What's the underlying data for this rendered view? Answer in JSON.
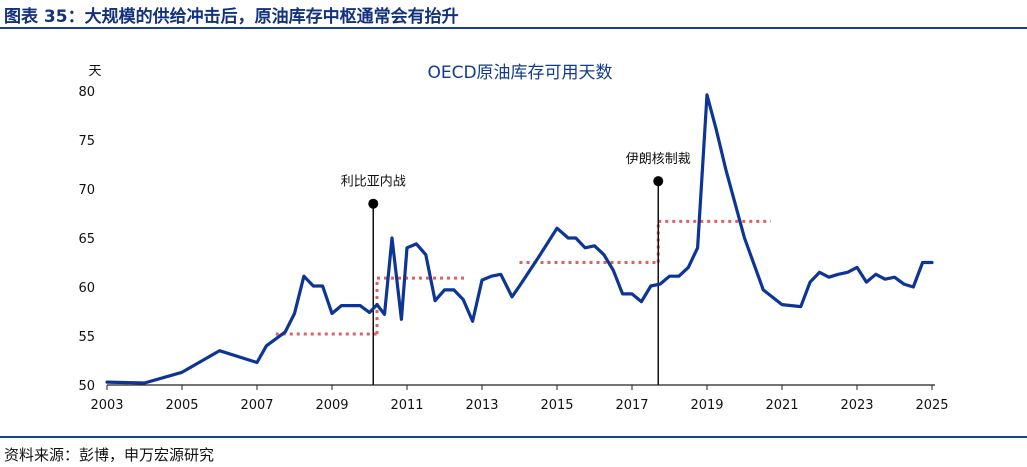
{
  "figure_title": "图表 35：大规模的供给冲击后，原油库存中枢通常会有抬升",
  "source_text": "资料来源：彭博，申万宏源研究",
  "colors": {
    "line": "#0d3595",
    "dotted": "#e06060",
    "rule": "#1c3f94",
    "title": "#12317e"
  },
  "chart_data": {
    "type": "line",
    "title": "OECD原油库存可用天数",
    "ylabel": "天",
    "xlabel": "",
    "xlim": [
      2003,
      2025
    ],
    "ylim": [
      50,
      80
    ],
    "x_ticks": [
      2003,
      2005,
      2007,
      2009,
      2011,
      2013,
      2015,
      2017,
      2019,
      2021,
      2023,
      2025
    ],
    "y_ticks": [
      50,
      55,
      60,
      65,
      70,
      75,
      80
    ],
    "grid": false,
    "series": [
      {
        "name": "",
        "x": [
          2003.0,
          2004.0,
          2005.0,
          2006.0,
          2007.0,
          2007.25,
          2007.75,
          2008.0,
          2008.25,
          2008.5,
          2008.75,
          2009.0,
          2009.25,
          2009.5,
          2009.75,
          2010.0,
          2010.2,
          2010.4,
          2010.6,
          2010.85,
          2011.0,
          2011.25,
          2011.5,
          2011.75,
          2012.0,
          2012.25,
          2012.5,
          2012.75,
          2013.0,
          2013.25,
          2013.5,
          2013.8,
          2014.0,
          2014.5,
          2015.0,
          2015.3,
          2015.5,
          2015.75,
          2016.0,
          2016.25,
          2016.5,
          2016.75,
          2017.0,
          2017.25,
          2017.5,
          2017.75,
          2018.0,
          2018.25,
          2018.5,
          2018.75,
          2019.0,
          2019.25,
          2019.5,
          2020.0,
          2020.5,
          2021.0,
          2021.5,
          2021.75,
          2022.0,
          2022.25,
          2022.5,
          2022.75,
          2023.0,
          2023.25,
          2023.5,
          2023.75,
          2024.0,
          2024.25,
          2024.5,
          2024.75,
          2025.0
        ],
        "values": [
          50.3,
          50.2,
          51.3,
          53.5,
          52.3,
          54.0,
          55.4,
          57.3,
          61.1,
          60.1,
          60.1,
          57.3,
          58.1,
          58.1,
          58.1,
          57.4,
          58.2,
          57.2,
          65.0,
          56.7,
          64.0,
          64.4,
          63.3,
          58.6,
          59.7,
          59.7,
          58.7,
          56.5,
          60.7,
          61.1,
          61.3,
          59.0,
          60.1,
          63.0,
          66.0,
          65.0,
          65.0,
          64.0,
          64.2,
          63.3,
          61.7,
          59.3,
          59.3,
          58.5,
          60.1,
          60.3,
          61.1,
          61.1,
          62.0,
          64.0,
          79.6,
          76.0,
          72.0,
          65.0,
          59.7,
          58.2,
          58.0,
          60.5,
          61.5,
          61.0,
          61.3,
          61.5,
          62.0,
          60.5,
          61.3,
          60.8,
          61.0,
          60.3,
          60.0,
          62.5,
          62.5
        ]
      }
    ],
    "reference_levels": [
      {
        "x_start": 2007.5,
        "x_end": 2010.2,
        "y": 55.2
      },
      {
        "x_start": 2010.2,
        "x_end": 2012.6,
        "y": 60.9
      },
      {
        "x_start": 2014.0,
        "x_end": 2017.7,
        "y": 62.5
      },
      {
        "x_start": 2017.7,
        "x_end": 2020.7,
        "y": 66.7
      }
    ],
    "events": [
      {
        "label": "利比亚内战",
        "x": 2010.1,
        "marker_y": 68.5
      },
      {
        "label": "伊朗核制裁",
        "x": 2017.7,
        "marker_y": 70.8
      }
    ]
  }
}
